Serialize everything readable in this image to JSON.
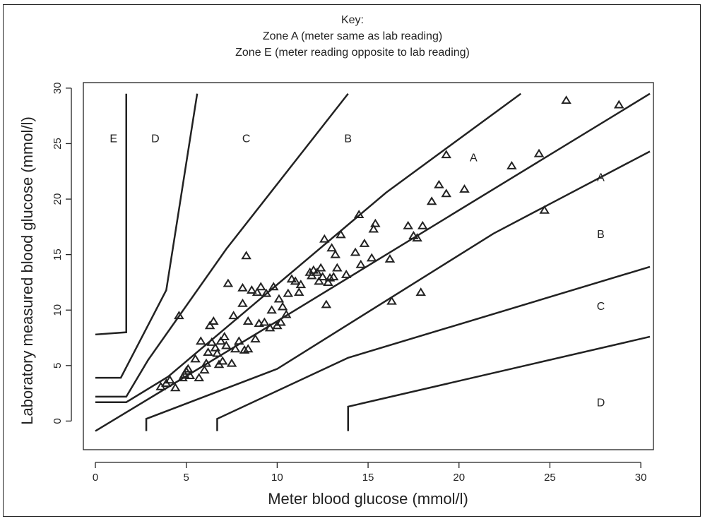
{
  "key": {
    "title": "Key:",
    "zone_a": "Zone A (meter same as lab reading)",
    "zone_e": "Zone E (meter reading opposite to lab reading)"
  },
  "chart_data": {
    "type": "scatter",
    "title": "",
    "xlabel": "Meter blood glucose (mmol/l)",
    "ylabel": "Laboratory measured blood glucose (mmol/l)",
    "xlim": [
      0,
      30.5
    ],
    "ylim": [
      -1.5,
      30.5
    ],
    "xticks": [
      0,
      5,
      10,
      15,
      20,
      25,
      30
    ],
    "yticks": [
      0,
      5,
      10,
      15,
      20,
      25,
      30
    ],
    "grid": false,
    "marker": "triangle",
    "zone_labels": [
      {
        "text": "E",
        "x": 1.0,
        "y": 25.5
      },
      {
        "text": "D",
        "x": 3.3,
        "y": 25.5
      },
      {
        "text": "C",
        "x": 8.3,
        "y": 25.5
      },
      {
        "text": "B",
        "x": 13.9,
        "y": 25.5
      },
      {
        "text": "A",
        "x": 20.8,
        "y": 23.8
      },
      {
        "text": "A",
        "x": 27.8,
        "y": 22.0
      },
      {
        "text": "B",
        "x": 27.8,
        "y": 16.9
      },
      {
        "text": "C",
        "x": 27.8,
        "y": 10.4
      },
      {
        "text": "D",
        "x": 27.8,
        "y": 1.7
      }
    ],
    "boundaries": [
      [
        [
          0,
          7.8
        ],
        [
          1.7,
          8.0
        ],
        [
          1.7,
          29.5
        ]
      ],
      [
        [
          0,
          3.9
        ],
        [
          1.4,
          3.9
        ],
        [
          3.9,
          11.8
        ],
        [
          5.6,
          29.5
        ]
      ],
      [
        [
          0,
          2.2
        ],
        [
          1.7,
          2.2
        ],
        [
          2.9,
          5.5
        ],
        [
          7.2,
          15.5
        ],
        [
          13.9,
          29.5
        ]
      ],
      [
        [
          0,
          1.7
        ],
        [
          1.7,
          1.7
        ],
        [
          4.0,
          4.0
        ],
        [
          16.0,
          20.6
        ],
        [
          23.4,
          29.5
        ]
      ],
      [
        [
          0,
          -0.9
        ],
        [
          10.0,
          9.0
        ],
        [
          30.5,
          29.5
        ]
      ],
      [
        [
          2.8,
          -0.9
        ],
        [
          2.8,
          0.2
        ],
        [
          10.0,
          4.7
        ],
        [
          21.9,
          16.9
        ],
        [
          30.5,
          24.3
        ]
      ],
      [
        [
          6.7,
          -0.9
        ],
        [
          6.7,
          0.2
        ],
        [
          13.9,
          5.7
        ],
        [
          30.5,
          13.9
        ]
      ],
      [
        [
          13.9,
          -0.9
        ],
        [
          13.9,
          1.3
        ],
        [
          30.5,
          7.6
        ]
      ]
    ],
    "points": [
      [
        3.6,
        3.1
      ],
      [
        3.9,
        3.4
      ],
      [
        4.1,
        3.7
      ],
      [
        4.4,
        3.0
      ],
      [
        4.6,
        9.5
      ],
      [
        4.8,
        3.9
      ],
      [
        4.9,
        4.2
      ],
      [
        5.0,
        4.5
      ],
      [
        5.1,
        4.7
      ],
      [
        5.2,
        4.1
      ],
      [
        5.5,
        5.6
      ],
      [
        5.7,
        3.9
      ],
      [
        5.8,
        7.2
      ],
      [
        6.0,
        4.6
      ],
      [
        6.1,
        5.2
      ],
      [
        6.2,
        6.2
      ],
      [
        6.3,
        8.6
      ],
      [
        6.4,
        7.1
      ],
      [
        6.5,
        9.0
      ],
      [
        6.6,
        6.6
      ],
      [
        6.7,
        6.1
      ],
      [
        6.8,
        5.1
      ],
      [
        6.9,
        7.2
      ],
      [
        7.0,
        5.4
      ],
      [
        7.1,
        7.6
      ],
      [
        7.2,
        6.8
      ],
      [
        7.3,
        12.4
      ],
      [
        7.5,
        5.2
      ],
      [
        7.6,
        9.5
      ],
      [
        7.7,
        6.5
      ],
      [
        7.9,
        7.2
      ],
      [
        8.1,
        12.0
      ],
      [
        8.2,
        6.4
      ],
      [
        8.1,
        10.6
      ],
      [
        8.3,
        14.9
      ],
      [
        8.4,
        9.0
      ],
      [
        8.4,
        6.5
      ],
      [
        8.6,
        11.8
      ],
      [
        8.8,
        7.4
      ],
      [
        8.9,
        11.6
      ],
      [
        9.0,
        8.8
      ],
      [
        9.1,
        12.1
      ],
      [
        9.3,
        8.9
      ],
      [
        9.4,
        11.5
      ],
      [
        9.6,
        8.4
      ],
      [
        9.7,
        10.0
      ],
      [
        9.8,
        12.1
      ],
      [
        10.0,
        8.6
      ],
      [
        10.1,
        11.0
      ],
      [
        10.2,
        8.9
      ],
      [
        10.3,
        10.3
      ],
      [
        10.5,
        9.6
      ],
      [
        10.6,
        11.5
      ],
      [
        10.8,
        12.8
      ],
      [
        11.0,
        12.6
      ],
      [
        11.2,
        11.6
      ],
      [
        11.3,
        12.3
      ],
      [
        11.8,
        13.4
      ],
      [
        11.9,
        13.1
      ],
      [
        12.0,
        13.6
      ],
      [
        12.2,
        13.4
      ],
      [
        12.3,
        12.6
      ],
      [
        12.4,
        13.8
      ],
      [
        12.5,
        13.0
      ],
      [
        12.6,
        16.4
      ],
      [
        12.7,
        10.5
      ],
      [
        12.8,
        12.5
      ],
      [
        12.9,
        12.9
      ],
      [
        13.1,
        13.0
      ],
      [
        13.0,
        15.6
      ],
      [
        13.2,
        15.0
      ],
      [
        13.3,
        13.8
      ],
      [
        13.5,
        16.8
      ],
      [
        13.8,
        13.2
      ],
      [
        14.3,
        15.2
      ],
      [
        14.5,
        18.6
      ],
      [
        14.6,
        14.1
      ],
      [
        14.8,
        16.0
      ],
      [
        15.2,
        14.7
      ],
      [
        15.3,
        17.3
      ],
      [
        15.4,
        17.8
      ],
      [
        16.2,
        14.6
      ],
      [
        16.3,
        10.8
      ],
      [
        17.2,
        17.6
      ],
      [
        17.5,
        16.7
      ],
      [
        17.7,
        16.5
      ],
      [
        17.9,
        11.6
      ],
      [
        18.0,
        17.6
      ],
      [
        18.5,
        19.8
      ],
      [
        18.9,
        21.3
      ],
      [
        19.3,
        20.5
      ],
      [
        19.3,
        24.0
      ],
      [
        20.3,
        20.9
      ],
      [
        22.9,
        23.0
      ],
      [
        24.4,
        24.1
      ],
      [
        24.7,
        19.0
      ],
      [
        25.9,
        28.9
      ],
      [
        28.8,
        28.5
      ]
    ]
  }
}
